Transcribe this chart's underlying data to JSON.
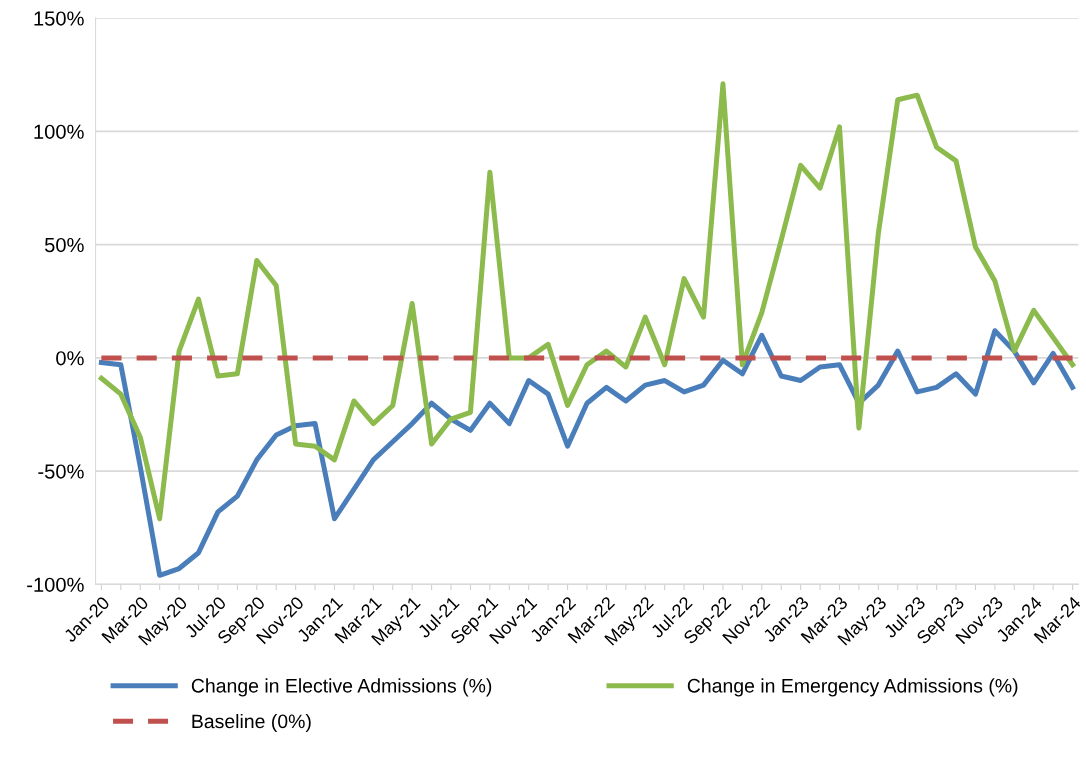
{
  "chart_data": {
    "type": "line",
    "categories": [
      "Jan-20",
      null,
      "Mar-20",
      null,
      "May-20",
      null,
      "Jul-20",
      null,
      "Sep-20",
      null,
      "Nov-20",
      null,
      "Jan-21",
      null,
      "Mar-21",
      null,
      "May-21",
      null,
      "Jul-21",
      null,
      "Sep-21",
      null,
      "Nov-21",
      null,
      "Jan-22",
      null,
      "Mar-22",
      null,
      "May-22",
      null,
      "Jul-22",
      null,
      "Sep-22",
      null,
      "Nov-22",
      null,
      "Jan-23",
      null,
      "Mar-23",
      null,
      "May-23",
      null,
      "Jul-23",
      null,
      "Sep-23",
      null,
      "Nov-23",
      null,
      "Jan-24",
      null,
      "Mar-24"
    ],
    "series": [
      {
        "name": "Change in Elective Admissions (%)",
        "color": "#4a7ebb",
        "values": [
          -2,
          -3,
          -48,
          -96,
          -93,
          -86,
          -68,
          -61,
          -45,
          -34,
          -30,
          -29,
          -71,
          -58,
          -45,
          -37,
          -29,
          -20,
          -27,
          -32,
          -20,
          -29,
          -10,
          -16,
          -39,
          -20,
          -13,
          -19,
          -12,
          -10,
          -15,
          -12,
          -1,
          -7,
          10,
          -8,
          -10,
          -4,
          -3,
          -20,
          -12,
          3,
          -15,
          -13,
          -7,
          -16,
          12,
          3,
          -11,
          2,
          -13
        ]
      },
      {
        "name": "Change in Emergency Admissions (%)",
        "color": "#8cba4c",
        "values": [
          -9,
          -16,
          -35,
          -71,
          3,
          26,
          -8,
          -7,
          43,
          32,
          -38,
          -39,
          -45,
          -19,
          -29,
          -21,
          24,
          -38,
          -27,
          -24,
          82,
          0,
          0,
          6,
          -21,
          -3,
          3,
          -4,
          18,
          -3,
          35,
          18,
          121,
          -3,
          20,
          52,
          85,
          75,
          102,
          -31,
          55,
          114,
          116,
          93,
          87,
          49,
          34,
          3,
          21,
          9,
          -3
        ]
      },
      {
        "name": "Baseline (0%)",
        "color": "#c0504d",
        "line_style": "dashed",
        "values": [
          0,
          0,
          0,
          0,
          0,
          0,
          0,
          0,
          0,
          0,
          0,
          0,
          0,
          0,
          0,
          0,
          0,
          0,
          0,
          0,
          0,
          0,
          0,
          0,
          0,
          0,
          0,
          0,
          0,
          0,
          0,
          0,
          0,
          0,
          0,
          0,
          0,
          0,
          0,
          0,
          0,
          0,
          0,
          0,
          0,
          0,
          0,
          0,
          0,
          0,
          0
        ]
      }
    ],
    "ylim": [
      -100,
      150
    ],
    "yticks": [
      {
        "value": -100,
        "label": "-100%"
      },
      {
        "value": -50,
        "label": "-50%"
      },
      {
        "value": 0,
        "label": "0%"
      },
      {
        "value": 50,
        "label": "50%"
      },
      {
        "value": 100,
        "label": "100%"
      },
      {
        "value": 150,
        "label": "150%"
      }
    ],
    "grid": "y",
    "legend": "bottom",
    "marker": "none",
    "line_style": "solid"
  }
}
